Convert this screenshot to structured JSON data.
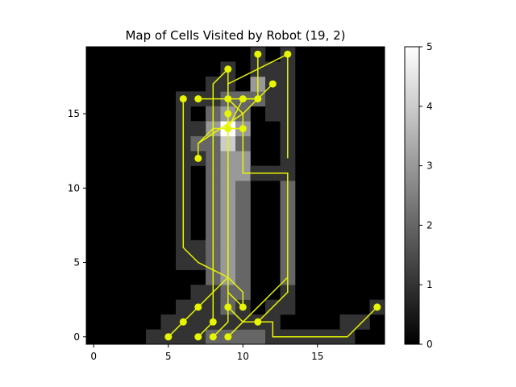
{
  "chart_data": {
    "type": "heatmap",
    "title": "Map of Cells Visited by Robot (19, 2)",
    "xlabel": "",
    "ylabel": "",
    "xlim": [
      -0.5,
      19.5
    ],
    "ylim": [
      -0.5,
      19.5
    ],
    "x_ticks": [
      0,
      5,
      10,
      15
    ],
    "y_ticks": [
      0,
      5,
      10,
      15
    ],
    "colormap": "gray",
    "colorbar": {
      "min": 0,
      "max": 5,
      "ticks": [
        0,
        1,
        2,
        3,
        4,
        5
      ]
    },
    "path_color": "#e6f500",
    "visit_counts": [
      {
        "x": 4,
        "y": 0,
        "v": 1
      },
      {
        "x": 5,
        "y": 0,
        "v": 1
      },
      {
        "x": 6,
        "y": 0,
        "v": 1
      },
      {
        "x": 7,
        "y": 0,
        "v": 1
      },
      {
        "x": 8,
        "y": 0,
        "v": 2
      },
      {
        "x": 9,
        "y": 0,
        "v": 2
      },
      {
        "x": 10,
        "y": 0,
        "v": 2
      },
      {
        "x": 11,
        "y": 0,
        "v": 2
      },
      {
        "x": 12,
        "y": 0,
        "v": 1
      },
      {
        "x": 13,
        "y": 0,
        "v": 1
      },
      {
        "x": 14,
        "y": 0,
        "v": 1
      },
      {
        "x": 15,
        "y": 0,
        "v": 1
      },
      {
        "x": 16,
        "y": 0,
        "v": 1
      },
      {
        "x": 17,
        "y": 0,
        "v": 1
      },
      {
        "x": 5,
        "y": 1,
        "v": 1
      },
      {
        "x": 6,
        "y": 1,
        "v": 1
      },
      {
        "x": 7,
        "y": 1,
        "v": 1
      },
      {
        "x": 8,
        "y": 1,
        "v": 1
      },
      {
        "x": 9,
        "y": 1,
        "v": 1
      },
      {
        "x": 10,
        "y": 1,
        "v": 1
      },
      {
        "x": 11,
        "y": 1,
        "v": 1
      },
      {
        "x": 12,
        "y": 1,
        "v": 1
      },
      {
        "x": 17,
        "y": 1,
        "v": 1
      },
      {
        "x": 18,
        "y": 1,
        "v": 1
      },
      {
        "x": 6,
        "y": 2,
        "v": 1
      },
      {
        "x": 7,
        "y": 2,
        "v": 1
      },
      {
        "x": 8,
        "y": 2,
        "v": 1
      },
      {
        "x": 9,
        "y": 2,
        "v": 2
      },
      {
        "x": 10,
        "y": 2,
        "v": 1
      },
      {
        "x": 12,
        "y": 2,
        "v": 1
      },
      {
        "x": 13,
        "y": 2,
        "v": 1
      },
      {
        "x": 19,
        "y": 2,
        "v": 1
      },
      {
        "x": 7,
        "y": 3,
        "v": 1
      },
      {
        "x": 8,
        "y": 3,
        "v": 1
      },
      {
        "x": 9,
        "y": 3,
        "v": 2
      },
      {
        "x": 10,
        "y": 3,
        "v": 2
      },
      {
        "x": 13,
        "y": 3,
        "v": 1
      },
      {
        "x": 6,
        "y": 5,
        "v": 1
      },
      {
        "x": 7,
        "y": 5,
        "v": 1
      },
      {
        "x": 7,
        "y": 6,
        "v": 1
      },
      {
        "x": 6,
        "y": 6,
        "v": 1
      },
      {
        "x": 6,
        "y": 7,
        "v": 1
      },
      {
        "x": 6,
        "y": 8,
        "v": 1
      },
      {
        "x": 6,
        "y": 9,
        "v": 1
      },
      {
        "x": 6,
        "y": 10,
        "v": 1
      },
      {
        "x": 6,
        "y": 11,
        "v": 1
      },
      {
        "x": 6,
        "y": 12,
        "v": 1
      },
      {
        "x": 6,
        "y": 13,
        "v": 1
      },
      {
        "x": 6,
        "y": 14,
        "v": 1
      },
      {
        "x": 6,
        "y": 15,
        "v": 1
      },
      {
        "x": 6,
        "y": 16,
        "v": 1
      },
      {
        "x": 7,
        "y": 16,
        "v": 1
      },
      {
        "x": 8,
        "y": 16,
        "v": 1
      },
      {
        "x": 8,
        "y": 4,
        "v": 2
      },
      {
        "x": 8,
        "y": 5,
        "v": 2
      },
      {
        "x": 8,
        "y": 6,
        "v": 2
      },
      {
        "x": 8,
        "y": 7,
        "v": 2
      },
      {
        "x": 8,
        "y": 8,
        "v": 2
      },
      {
        "x": 8,
        "y": 9,
        "v": 2
      },
      {
        "x": 8,
        "y": 10,
        "v": 2
      },
      {
        "x": 8,
        "y": 11,
        "v": 2
      },
      {
        "x": 8,
        "y": 12,
        "v": 2
      },
      {
        "x": 8,
        "y": 13,
        "v": 2
      },
      {
        "x": 8,
        "y": 14,
        "v": 3
      },
      {
        "x": 8,
        "y": 15,
        "v": 2
      },
      {
        "x": 8,
        "y": 17,
        "v": 1
      },
      {
        "x": 9,
        "y": 4,
        "v": 3
      },
      {
        "x": 9,
        "y": 5,
        "v": 3
      },
      {
        "x": 9,
        "y": 6,
        "v": 3
      },
      {
        "x": 9,
        "y": 7,
        "v": 3
      },
      {
        "x": 9,
        "y": 8,
        "v": 3
      },
      {
        "x": 9,
        "y": 9,
        "v": 3
      },
      {
        "x": 9,
        "y": 10,
        "v": 3
      },
      {
        "x": 9,
        "y": 11,
        "v": 3
      },
      {
        "x": 9,
        "y": 12,
        "v": 3
      },
      {
        "x": 9,
        "y": 13,
        "v": 4
      },
      {
        "x": 9,
        "y": 14,
        "v": 5
      },
      {
        "x": 9,
        "y": 15,
        "v": 3
      },
      {
        "x": 9,
        "y": 16,
        "v": 2
      },
      {
        "x": 9,
        "y": 17,
        "v": 1
      },
      {
        "x": 9,
        "y": 18,
        "v": 1
      },
      {
        "x": 10,
        "y": 4,
        "v": 2
      },
      {
        "x": 10,
        "y": 5,
        "v": 2
      },
      {
        "x": 10,
        "y": 6,
        "v": 2
      },
      {
        "x": 10,
        "y": 7,
        "v": 2
      },
      {
        "x": 10,
        "y": 8,
        "v": 2
      },
      {
        "x": 10,
        "y": 9,
        "v": 2
      },
      {
        "x": 10,
        "y": 10,
        "v": 2
      },
      {
        "x": 10,
        "y": 11,
        "v": 3
      },
      {
        "x": 10,
        "y": 12,
        "v": 3
      },
      {
        "x": 10,
        "y": 13,
        "v": 2
      },
      {
        "x": 10,
        "y": 14,
        "v": 3
      },
      {
        "x": 10,
        "y": 15,
        "v": 2
      },
      {
        "x": 10,
        "y": 16,
        "v": 2
      },
      {
        "x": 7,
        "y": 12,
        "v": 1
      },
      {
        "x": 7,
        "y": 13,
        "v": 2
      },
      {
        "x": 7,
        "y": 14,
        "v": 1
      },
      {
        "x": 11,
        "y": 11,
        "v": 1
      },
      {
        "x": 12,
        "y": 11,
        "v": 1
      },
      {
        "x": 11,
        "y": 16,
        "v": 2
      },
      {
        "x": 11,
        "y": 17,
        "v": 3
      },
      {
        "x": 11,
        "y": 18,
        "v": 1
      },
      {
        "x": 11,
        "y": 19,
        "v": 1
      },
      {
        "x": 12,
        "y": 15,
        "v": 1
      },
      {
        "x": 12,
        "y": 16,
        "v": 1
      },
      {
        "x": 12,
        "y": 17,
        "v": 1
      },
      {
        "x": 12,
        "y": 18,
        "v": 1
      },
      {
        "x": 13,
        "y": 18,
        "v": 1
      },
      {
        "x": 13,
        "y": 19,
        "v": 1
      },
      {
        "x": 13,
        "y": 17,
        "v": 1
      },
      {
        "x": 13,
        "y": 16,
        "v": 1
      },
      {
        "x": 13,
        "y": 15,
        "v": 1
      },
      {
        "x": 13,
        "y": 14,
        "v": 1
      },
      {
        "x": 13,
        "y": 13,
        "v": 1
      },
      {
        "x": 13,
        "y": 12,
        "v": 1
      },
      {
        "x": 13,
        "y": 4,
        "v": 2
      },
      {
        "x": 13,
        "y": 5,
        "v": 2
      },
      {
        "x": 13,
        "y": 6,
        "v": 2
      },
      {
        "x": 13,
        "y": 7,
        "v": 2
      },
      {
        "x": 13,
        "y": 8,
        "v": 2
      },
      {
        "x": 13,
        "y": 9,
        "v": 2
      },
      {
        "x": 13,
        "y": 10,
        "v": 2
      },
      {
        "x": 13,
        "y": 11,
        "v": 1
      },
      {
        "x": 11,
        "y": 0,
        "v": 2
      },
      {
        "x": 11,
        "y": 1,
        "v": 1
      }
    ],
    "path_segments": [
      [
        [
          5,
          0
        ],
        [
          6,
          1
        ],
        [
          7,
          2
        ],
        [
          8,
          3
        ],
        [
          9,
          4
        ]
      ],
      [
        [
          7,
          0
        ],
        [
          8,
          1
        ],
        [
          8,
          17
        ],
        [
          9,
          18
        ],
        [
          9,
          14
        ],
        [
          10,
          14
        ]
      ],
      [
        [
          8,
          0
        ],
        [
          9,
          1
        ],
        [
          9,
          16
        ],
        [
          10,
          16
        ],
        [
          11,
          16
        ],
        [
          11,
          19
        ]
      ],
      [
        [
          9,
          0
        ],
        [
          10,
          1
        ],
        [
          11,
          1
        ],
        [
          12,
          1
        ],
        [
          12,
          0
        ],
        [
          17,
          0
        ],
        [
          19,
          2
        ]
      ],
      [
        [
          9,
          2
        ],
        [
          10,
          1
        ],
        [
          13,
          4
        ],
        [
          13,
          11
        ],
        [
          12,
          11
        ],
        [
          10,
          11
        ],
        [
          10,
          15
        ],
        [
          9,
          16
        ]
      ],
      [
        [
          6,
          16
        ],
        [
          6,
          6
        ],
        [
          7,
          5
        ],
        [
          9,
          4
        ],
        [
          10,
          3
        ],
        [
          10,
          2
        ]
      ],
      [
        [
          7,
          12
        ],
        [
          7,
          13
        ],
        [
          8,
          14
        ],
        [
          9,
          14
        ],
        [
          9,
          15
        ],
        [
          9,
          16
        ],
        [
          9,
          17
        ],
        [
          13,
          19
        ],
        [
          13,
          16
        ],
        [
          13,
          12
        ]
      ],
      [
        [
          7,
          16
        ],
        [
          9,
          16
        ],
        [
          10,
          15
        ],
        [
          12,
          17
        ],
        [
          10,
          15
        ],
        [
          7,
          13
        ]
      ],
      [
        [
          9,
          14
        ],
        [
          10,
          16
        ],
        [
          11,
          16
        ]
      ],
      [
        [
          10,
          2
        ],
        [
          9,
          3
        ],
        [
          9,
          13
        ]
      ],
      [
        [
          11,
          1
        ],
        [
          13,
          3
        ],
        [
          13,
          4
        ]
      ]
    ],
    "path_points": [
      [
        5,
        0
      ],
      [
        6,
        1
      ],
      [
        7,
        2
      ],
      [
        8,
        1
      ],
      [
        7,
        0
      ],
      [
        8,
        0
      ],
      [
        9,
        0
      ],
      [
        9,
        2
      ],
      [
        10,
        2
      ],
      [
        11,
        1
      ],
      [
        19,
        2
      ],
      [
        6,
        16
      ],
      [
        7,
        16
      ],
      [
        7,
        12
      ],
      [
        9,
        14
      ],
      [
        10,
        14
      ],
      [
        9,
        15
      ],
      [
        9,
        16
      ],
      [
        10,
        16
      ],
      [
        11,
        16
      ],
      [
        12,
        17
      ],
      [
        9,
        18
      ],
      [
        11,
        19
      ],
      [
        13,
        19
      ]
    ]
  }
}
